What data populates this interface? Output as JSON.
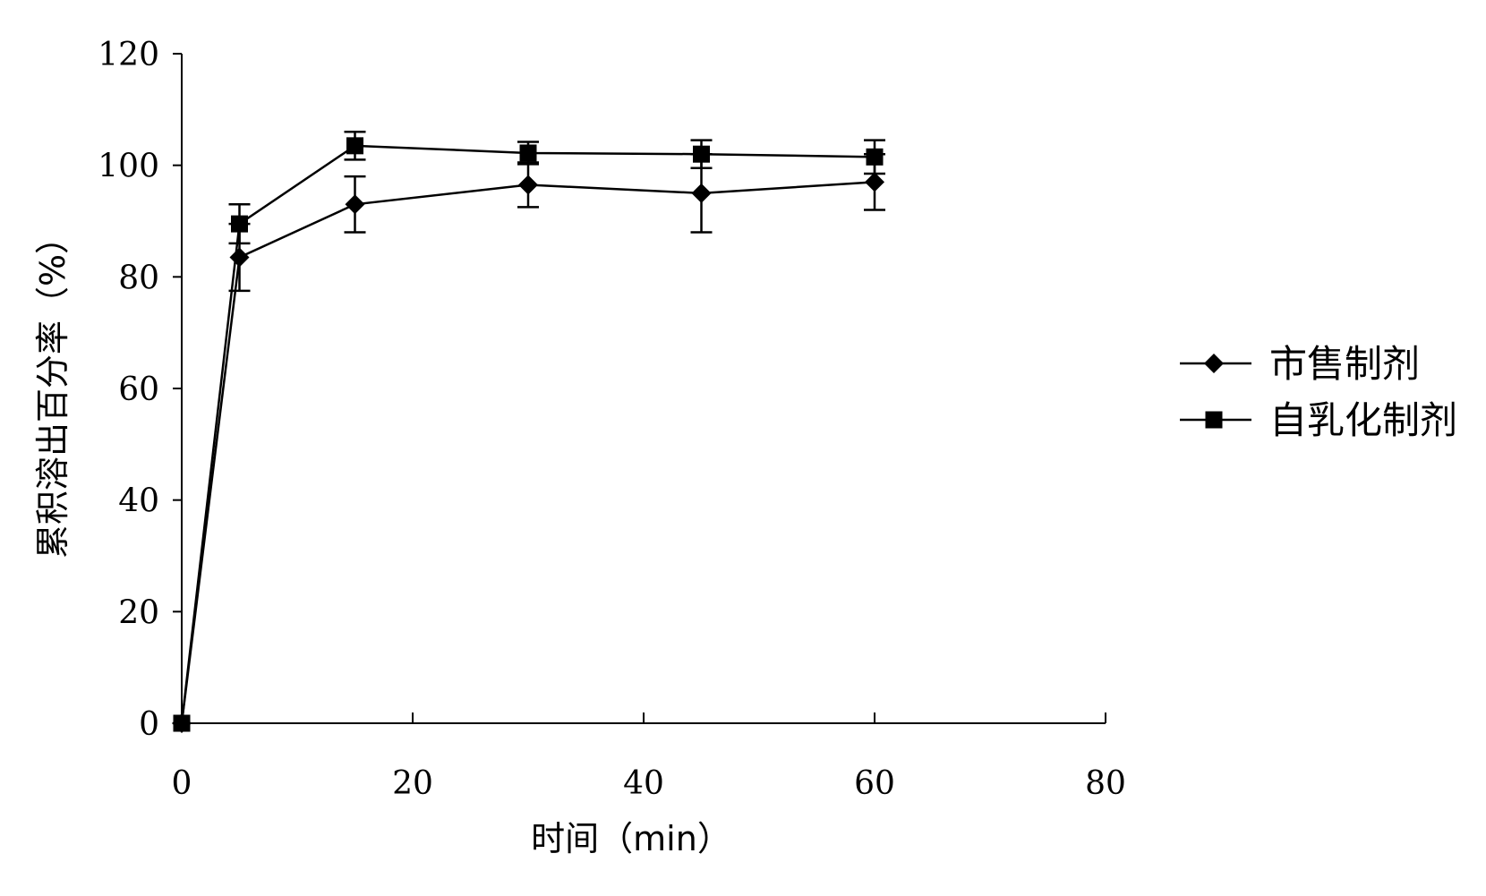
{
  "chart_data": {
    "type": "line",
    "title": "",
    "xlabel": "时间（min）",
    "ylabel": "累积溶出百分率（%）",
    "xlim": [
      0,
      80
    ],
    "ylim": [
      0,
      120
    ],
    "xticks": [
      0,
      20,
      40,
      60,
      80
    ],
    "yticks": [
      0,
      20,
      40,
      60,
      80,
      100,
      120
    ],
    "grid": false,
    "legend_position": "right",
    "x": [
      0,
      5,
      15,
      30,
      45,
      60
    ],
    "series": [
      {
        "name": "市售制剂",
        "marker": "diamond",
        "values": [
          0,
          83.5,
          93,
          96.5,
          95,
          97
        ],
        "error": [
          0,
          6,
          5,
          4,
          7,
          5
        ]
      },
      {
        "name": "自乳化制剂",
        "marker": "square",
        "values": [
          0,
          89.5,
          103.5,
          102.2,
          102,
          101.5
        ],
        "error": [
          0,
          3.5,
          2.5,
          2,
          2.5,
          3
        ]
      }
    ]
  }
}
